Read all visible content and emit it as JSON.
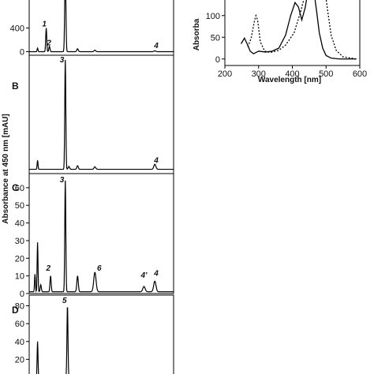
{
  "figure": {
    "left_ylabel": "Absorbance at 450 nm [mAU]"
  },
  "chart_data": [
    {
      "id": "A",
      "type": "line",
      "panel_letter": "",
      "xlabel": "",
      "ylabel": "",
      "yticks": [
        0,
        400
      ],
      "ylim": [
        -60,
        900
      ],
      "xlim": [
        0,
        1
      ],
      "series": [
        {
          "baseline": 0,
          "peaks": [
            {
              "x": 0.058,
              "height": 60,
              "width": 0.003
            },
            {
              "x": 0.118,
              "height": 400,
              "width": 0.0035
            },
            {
              "x": 0.14,
              "height": 90,
              "width": 0.004
            },
            {
              "x": 0.25,
              "height": 1400,
              "width": 0.004
            },
            {
              "x": 0.335,
              "height": 50,
              "width": 0.005
            },
            {
              "x": 0.455,
              "height": 25,
              "width": 0.006
            },
            {
              "x": 0.87,
              "height": 15,
              "width": 0.006
            }
          ]
        }
      ],
      "annotations": [
        {
          "text": "1",
          "x": 0.105,
          "y": 430
        },
        {
          "text": "2",
          "x": 0.137,
          "y": 110
        },
        {
          "text": "4",
          "x": 0.88,
          "y": 60
        }
      ]
    },
    {
      "id": "B",
      "type": "line",
      "panel_letter": "B",
      "xlabel": "",
      "ylabel": "",
      "yticks": [],
      "ylim": [
        0,
        330
      ],
      "xlim": [
        0,
        1
      ],
      "series": [
        {
          "baseline": 12,
          "peaks": [
            {
              "x": 0.058,
              "height": 25,
              "width": 0.003
            },
            {
              "x": 0.25,
              "height": 305,
              "width": 0.0035
            },
            {
              "x": 0.275,
              "height": 8,
              "width": 0.005
            },
            {
              "x": 0.335,
              "height": 10,
              "width": 0.005
            },
            {
              "x": 0.455,
              "height": 7,
              "width": 0.006
            },
            {
              "x": 0.87,
              "height": 14,
              "width": 0.007
            }
          ]
        }
      ],
      "annotations": [
        {
          "text": "3",
          "x": 0.227,
          "y": 310
        },
        {
          "text": "4",
          "x": 0.88,
          "y": 30
        }
      ]
    },
    {
      "id": "C",
      "type": "line",
      "panel_letter": "C",
      "xlabel": "",
      "ylabel": "",
      "yticks": [
        0,
        10,
        20,
        30,
        40,
        50,
        60
      ],
      "ylim": [
        0,
        68
      ],
      "xlim": [
        0,
        1
      ],
      "series": [
        {
          "baseline": 1,
          "peaks": [
            {
              "x": 0.04,
              "height": 10,
              "width": 0.003
            },
            {
              "x": 0.058,
              "height": 28,
              "width": 0.003
            },
            {
              "x": 0.08,
              "height": 4,
              "width": 0.004
            },
            {
              "x": 0.148,
              "height": 9,
              "width": 0.004
            },
            {
              "x": 0.25,
              "height": 63,
              "width": 0.0035
            },
            {
              "x": 0.335,
              "height": 9,
              "width": 0.005
            },
            {
              "x": 0.455,
              "height": 11,
              "width": 0.008
            },
            {
              "x": 0.795,
              "height": 3,
              "width": 0.008
            },
            {
              "x": 0.87,
              "height": 6,
              "width": 0.008
            }
          ]
        }
      ],
      "annotations": [
        {
          "text": "3",
          "x": 0.227,
          "y": 63
        },
        {
          "text": "2",
          "x": 0.133,
          "y": 13
        },
        {
          "text": "6",
          "x": 0.485,
          "y": 13
        },
        {
          "text": "4'",
          "x": 0.795,
          "y": 9
        },
        {
          "text": "4",
          "x": 0.88,
          "y": 10
        }
      ]
    },
    {
      "id": "D",
      "type": "line",
      "panel_letter": "D",
      "xlabel": "",
      "ylabel": "",
      "yticks": [
        0,
        20,
        40,
        60,
        80
      ],
      "ylim": [
        0,
        92
      ],
      "xlim": [
        0,
        1
      ],
      "series": [
        {
          "baseline": 0,
          "peaks": [
            {
              "x": 0.058,
              "height": 40,
              "width": 0.003
            },
            {
              "x": 0.265,
              "height": 81,
              "width": 0.0035
            }
          ]
        }
      ],
      "annotations": [
        {
          "text": "5",
          "x": 0.245,
          "y": 83
        }
      ]
    },
    {
      "id": "spectrum",
      "type": "line",
      "panel_letter": "",
      "xlabel": "Wavelength [nm]",
      "ylabel": "Absorba",
      "xticks": [
        200,
        300,
        400,
        500,
        600
      ],
      "yticks": [
        0,
        50,
        100
      ],
      "xlim": [
        200,
        600
      ],
      "ylim": [
        -15,
        145
      ],
      "series": [
        {
          "style": "solid",
          "points": [
            [
              248,
              35
            ],
            [
              258,
              48
            ],
            [
              266,
              35
            ],
            [
              275,
              18
            ],
            [
              285,
              12
            ],
            [
              300,
              18
            ],
            [
              320,
              16
            ],
            [
              340,
              18
            ],
            [
              360,
              25
            ],
            [
              380,
              55
            ],
            [
              395,
              100
            ],
            [
              408,
              130
            ],
            [
              418,
              120
            ],
            [
              428,
              90
            ],
            [
              438,
              118
            ],
            [
              445,
              150
            ]
          ],
          "points_b": [
            [
              465,
              150
            ],
            [
              472,
              110
            ],
            [
              480,
              60
            ],
            [
              490,
              25
            ],
            [
              500,
              8
            ],
            [
              515,
              2
            ],
            [
              540,
              0
            ],
            [
              590,
              0
            ]
          ]
        },
        {
          "style": "dotted",
          "points": [
            [
              268,
              28
            ],
            [
              278,
              48
            ],
            [
              287,
              85
            ],
            [
              292,
              100
            ],
            [
              297,
              90
            ],
            [
              305,
              40
            ],
            [
              318,
              18
            ],
            [
              335,
              15
            ],
            [
              360,
              20
            ],
            [
              380,
              32
            ],
            [
              405,
              60
            ],
            [
              425,
              110
            ],
            [
              435,
              140
            ],
            [
              440,
              150
            ]
          ],
          "points_b": [
            [
              498,
              150
            ],
            [
              505,
              110
            ],
            [
              515,
              55
            ],
            [
              530,
              20
            ],
            [
              550,
              5
            ],
            [
              590,
              0
            ]
          ]
        }
      ]
    }
  ]
}
